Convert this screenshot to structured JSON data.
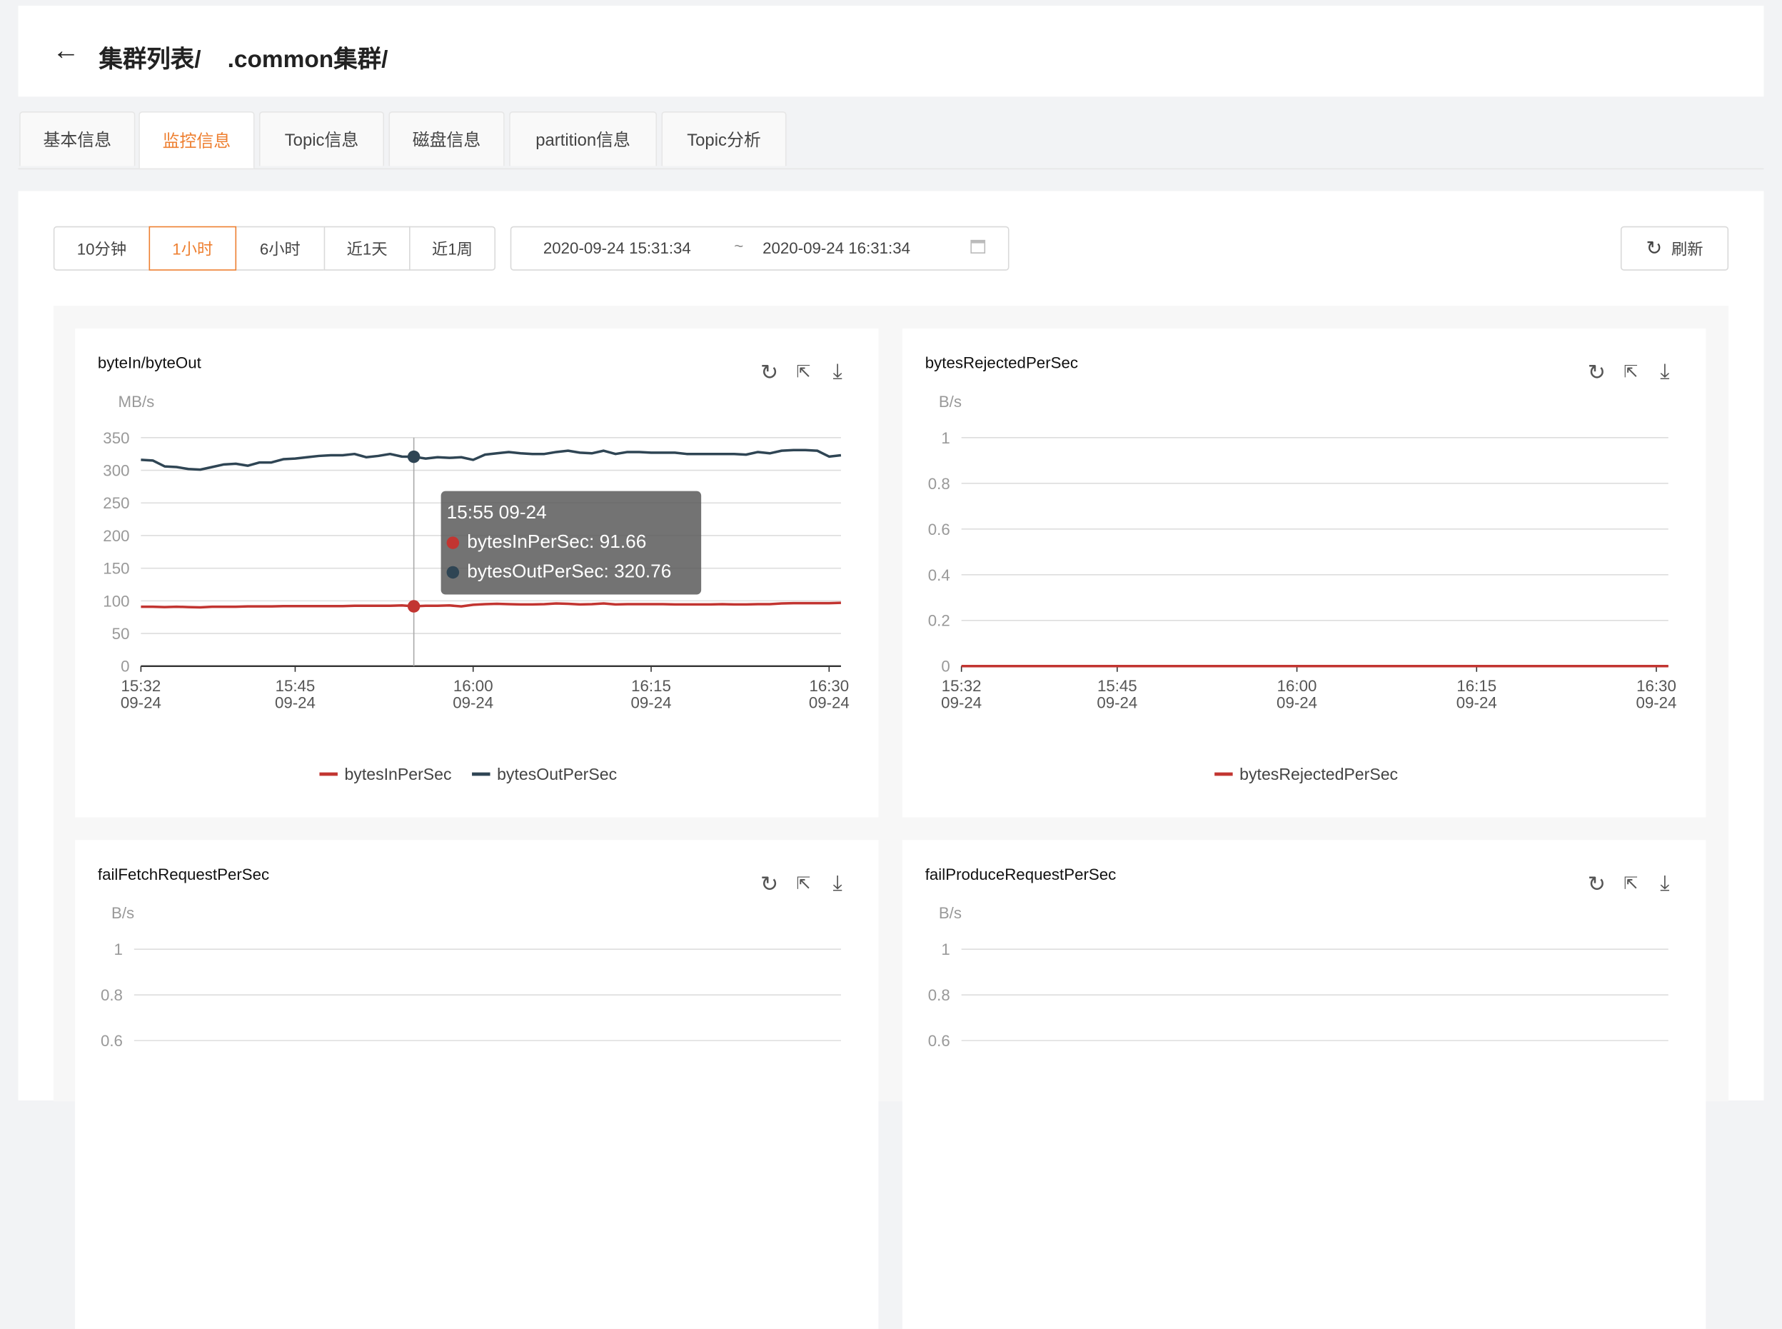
{
  "header": {
    "back_icon": "arrow-left-icon",
    "breadcrumb": "集群列表/    .common集群/"
  },
  "tabs": [
    {
      "label": "基本信息"
    },
    {
      "label": "监控信息",
      "active": true
    },
    {
      "label": "Topic信息"
    },
    {
      "label": "磁盘信息"
    },
    {
      "label": "partition信息"
    },
    {
      "label": "Topic分析"
    }
  ],
  "toolbar": {
    "time_buttons": [
      {
        "label": "10分钟"
      },
      {
        "label": "1小时",
        "active": true
      },
      {
        "label": "6小时"
      },
      {
        "label": "近1天"
      },
      {
        "label": "近1周"
      }
    ],
    "range_start": "2020-09-24 15:31:34",
    "range_sep": "~",
    "range_end": "2020-09-24 16:31:34",
    "calendar_icon": "calendar-icon",
    "refresh_icon": "refresh-icon",
    "refresh_label": "刷新"
  },
  "colors": {
    "accent": "#ee7f30",
    "bytesIn": "#c23531",
    "bytesOut": "#2f4554"
  },
  "tooltip": {
    "time": "15:55 09-24",
    "rows": [
      {
        "label": "bytesInPerSec: 91.66",
        "color": "#c23531"
      },
      {
        "label": "bytesOutPerSec: 320.76",
        "color": "#2f4554"
      }
    ]
  },
  "chart_data": [
    {
      "type": "line",
      "title": "byteIn/byteOut",
      "unit": "MB/s",
      "ylim": [
        0,
        350
      ],
      "yticks": [
        "0",
        "50",
        "100",
        "150",
        "200",
        "250",
        "300",
        "350"
      ],
      "x_start": "15:32",
      "x_step_min": 1,
      "xticks": [
        {
          "min": 0,
          "label": "15:32",
          "date": "09-24"
        },
        {
          "min": 13,
          "label": "15:45",
          "date": "09-24"
        },
        {
          "min": 28,
          "label": "16:00",
          "date": "09-24"
        },
        {
          "min": 43,
          "label": "16:15",
          "date": "09-24"
        },
        {
          "min": 58,
          "label": "16:30",
          "date": "09-24"
        }
      ],
      "hover": "15:55",
      "series": [
        {
          "name": "bytesInPerSec",
          "color": "#c23531",
          "values": [
            91,
            91,
            90.5,
            91,
            90.5,
            90,
            91,
            91,
            91,
            91.5,
            91.5,
            91.5,
            92,
            92,
            92,
            92,
            92,
            92,
            92.5,
            92.5,
            92.5,
            92.5,
            93,
            91.66,
            92.5,
            92.5,
            93,
            91.5,
            94,
            95,
            95.5,
            95,
            94.5,
            94.5,
            95,
            96,
            95.5,
            94.5,
            95,
            96,
            94.5,
            95,
            95,
            95,
            95,
            94.5,
            94.5,
            94.5,
            94.5,
            95,
            94.5,
            94.5,
            95,
            95,
            96,
            96.5,
            96.5,
            96.5,
            96.5,
            97
          ]
        },
        {
          "name": "bytesOutPerSec",
          "color": "#2f4554",
          "values": [
            316,
            315,
            306,
            305,
            302,
            301,
            305,
            309,
            310,
            307,
            312,
            312,
            317,
            318,
            320,
            322,
            323,
            323,
            325,
            320,
            322,
            325,
            321,
            320.76,
            318,
            320,
            319,
            320,
            316,
            324,
            326,
            328,
            326,
            325,
            325,
            328,
            330,
            327,
            326,
            330,
            325,
            328,
            328,
            327,
            327,
            327,
            325,
            325,
            325,
            325,
            325,
            324,
            328,
            326,
            330,
            331,
            331,
            330,
            321,
            323
          ]
        }
      ]
    },
    {
      "type": "line",
      "title": "bytesRejectedPerSec",
      "unit": "B/s",
      "ylim": [
        0,
        1
      ],
      "yticks": [
        "0",
        "0.2",
        "0.4",
        "0.6",
        "0.8",
        "1"
      ],
      "xticks": [
        {
          "min": 0,
          "label": "15:32",
          "date": "09-24"
        },
        {
          "min": 13,
          "label": "15:45",
          "date": "09-24"
        },
        {
          "min": 28,
          "label": "16:00",
          "date": "09-24"
        },
        {
          "min": 43,
          "label": "16:15",
          "date": "09-24"
        },
        {
          "min": 58,
          "label": "16:30",
          "date": "09-24"
        }
      ],
      "series": [
        {
          "name": "bytesRejectedPerSec",
          "color": "#c23531",
          "values": [
            0,
            0
          ]
        }
      ]
    },
    {
      "type": "line",
      "title": "failFetchRequestPerSec",
      "unit": "B/s",
      "ylim": [
        0,
        1
      ],
      "yticks": [
        "0.6",
        "0.8",
        "1"
      ]
    },
    {
      "type": "line",
      "title": "failProduceRequestPerSec",
      "unit": "B/s",
      "ylim": [
        0,
        1
      ],
      "yticks": [
        "0.6",
        "0.8",
        "1"
      ]
    }
  ]
}
